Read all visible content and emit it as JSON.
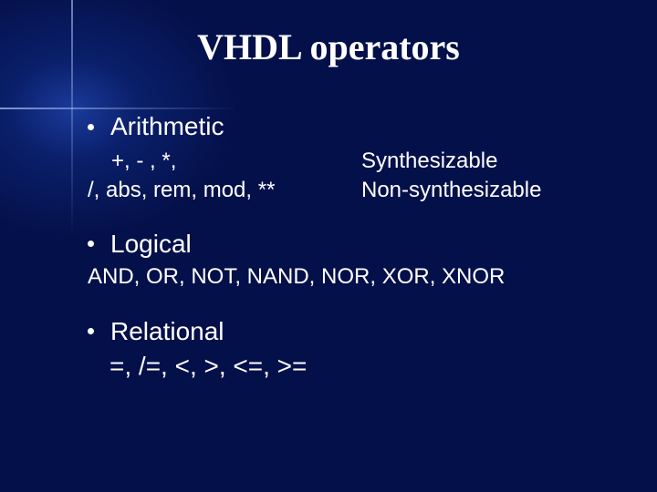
{
  "title": "VHDL operators",
  "sections": {
    "arithmetic": {
      "heading": "Arithmetic",
      "rows": [
        {
          "ops": "+, - , *,",
          "note": "Synthesizable"
        },
        {
          "ops": "/, abs, rem, mod, **",
          "note": "Non-synthesizable"
        }
      ]
    },
    "logical": {
      "heading": "Logical",
      "ops": "AND, OR, NOT, NAND, NOR, XOR, XNOR"
    },
    "relational": {
      "heading": "Relational",
      "ops": "=, /=, <, >, <=, >="
    }
  },
  "colors": {
    "background_center": "#1a3a9a",
    "background_outer": "#04104a",
    "text": "#ffffff"
  },
  "fonts": {
    "title_family": "Times New Roman",
    "title_size_pt": 40,
    "body_family": "Verdana",
    "bullet_size_pt": 28,
    "sub_size_pt": 24
  }
}
